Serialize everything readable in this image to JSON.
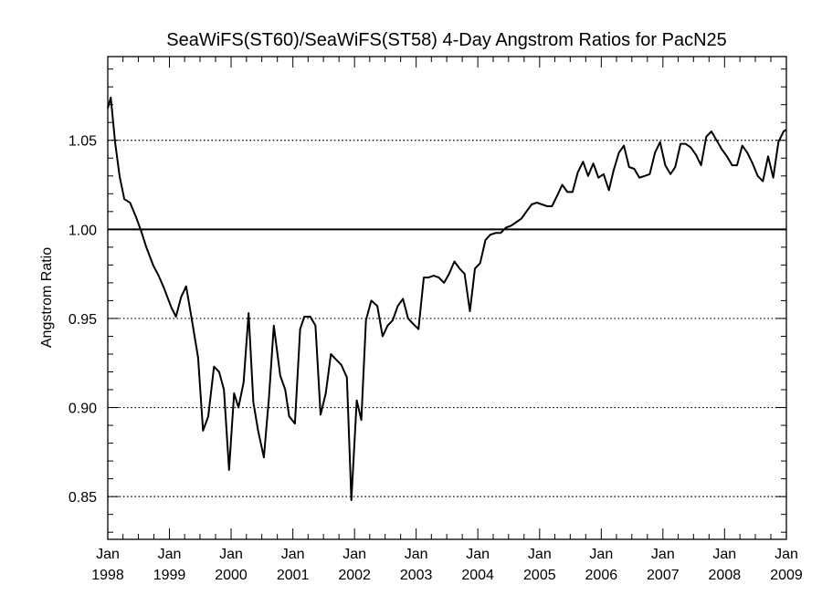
{
  "chart_data": {
    "type": "line",
    "title": "SeaWiFS(ST60)/SeaWiFS(ST58) 4-Day Angstrom Ratios for PacN25",
    "xlabel": "",
    "ylabel": "Angstrom Ratio",
    "xlim": [
      "1998-01-01",
      "2009-01-01"
    ],
    "ylim": [
      0.826,
      1.097
    ],
    "y_ticks": [
      "0.85",
      "0.90",
      "0.95",
      "1.00",
      "1.05"
    ],
    "x_ticks": [
      {
        "month": "Jan",
        "year": "1998",
        "date": "1998-01-01"
      },
      {
        "month": "Jan",
        "year": "1999",
        "date": "1999-01-01"
      },
      {
        "month": "Jan",
        "year": "2000",
        "date": "2000-01-01"
      },
      {
        "month": "Jan",
        "year": "2001",
        "date": "2001-01-01"
      },
      {
        "month": "Jan",
        "year": "2002",
        "date": "2002-01-01"
      },
      {
        "month": "Jan",
        "year": "2003",
        "date": "2003-01-01"
      },
      {
        "month": "Jan",
        "year": "2004",
        "date": "2004-01-01"
      },
      {
        "month": "Jan",
        "year": "2005",
        "date": "2005-01-01"
      },
      {
        "month": "Jan",
        "year": "2006",
        "date": "2006-01-01"
      },
      {
        "month": "Jan",
        "year": "2007",
        "date": "2007-01-01"
      },
      {
        "month": "Jan",
        "year": "2008",
        "date": "2008-01-01"
      },
      {
        "month": "Jan",
        "year": "2009",
        "date": "2009-01-01"
      }
    ],
    "grid": "horizontal dotted at labeled y ticks",
    "reference_line": 1.0,
    "series": [
      {
        "color": "#000000",
        "x": [
          "1998-01-01",
          "1998-01-19",
          "1998-02-13",
          "1998-03-12",
          "1998-04-09",
          "1998-05-13",
          "1998-06-17",
          "1998-07-18",
          "1998-08-17",
          "1998-09-26",
          "1998-10-29",
          "1998-11-30",
          "1999-01-13",
          "1999-02-09",
          "1999-03-11",
          "1999-04-10",
          "1999-05-11",
          "1999-06-20",
          "1999-07-19",
          "1999-08-19",
          "1999-09-22",
          "1999-10-22",
          "1999-11-20",
          "1999-12-20",
          "2000-01-19",
          "2000-02-14",
          "2000-03-15",
          "2000-04-14",
          "2000-05-12",
          "2000-06-09",
          "2000-07-13",
          "2000-08-12",
          "2000-09-10",
          "2000-10-18",
          "2000-11-17",
          "2000-12-10",
          "2001-01-13",
          "2001-02-13",
          "2001-03-10",
          "2001-04-14",
          "2001-05-15",
          "2001-06-14",
          "2001-07-15",
          "2001-08-14",
          "2001-09-13",
          "2001-10-14",
          "2001-11-17",
          "2001-12-13",
          "2002-01-14",
          "2002-02-10",
          "2002-03-10",
          "2002-04-10",
          "2002-05-16",
          "2002-06-16",
          "2002-07-16",
          "2002-08-15",
          "2002-09-14",
          "2002-10-15",
          "2002-11-14",
          "2002-12-14",
          "2003-01-15",
          "2003-02-15",
          "2003-03-15",
          "2003-04-15",
          "2003-05-15",
          "2003-06-15",
          "2003-07-15",
          "2003-08-15",
          "2003-09-15",
          "2003-10-15",
          "2003-11-15",
          "2003-12-15",
          "2004-01-15",
          "2004-02-15",
          "2004-03-15",
          "2004-04-15",
          "2004-05-15",
          "2004-06-15",
          "2004-07-15",
          "2004-08-15",
          "2004-09-15",
          "2004-10-15",
          "2004-11-15",
          "2004-12-15",
          "2005-01-15",
          "2005-02-15",
          "2005-03-15",
          "2005-04-15",
          "2005-05-15",
          "2005-06-15",
          "2005-07-15",
          "2005-08-15",
          "2005-09-15",
          "2005-10-15",
          "2005-11-15",
          "2005-12-15",
          "2006-01-15",
          "2006-02-15",
          "2006-03-15",
          "2006-04-15",
          "2006-05-15",
          "2006-06-15",
          "2006-07-15",
          "2006-08-15",
          "2006-09-15",
          "2006-10-15",
          "2006-11-15",
          "2006-12-15",
          "2007-01-15",
          "2007-02-15",
          "2007-03-15",
          "2007-04-15",
          "2007-05-15",
          "2007-06-15",
          "2007-07-15",
          "2007-08-15",
          "2007-09-15",
          "2007-10-15",
          "2007-11-15",
          "2007-12-15",
          "2008-01-15",
          "2008-02-15",
          "2008-03-15",
          "2008-04-15",
          "2008-05-15",
          "2008-06-15",
          "2008-07-15",
          "2008-08-15",
          "2008-09-15",
          "2008-10-15",
          "2008-11-15",
          "2008-12-15",
          "2009-01-01"
        ],
        "y": [
          1.068,
          1.074,
          1.049,
          1.03,
          1.017,
          1.015,
          1.007,
          0.999,
          0.99,
          0.98,
          0.974,
          0.967,
          0.956,
          0.951,
          0.962,
          0.968,
          0.951,
          0.928,
          0.887,
          0.895,
          0.923,
          0.92,
          0.91,
          0.865,
          0.908,
          0.9,
          0.914,
          0.953,
          0.903,
          0.887,
          0.872,
          0.905,
          0.946,
          0.918,
          0.91,
          0.895,
          0.891,
          0.944,
          0.951,
          0.951,
          0.946,
          0.896,
          0.908,
          0.93,
          0.927,
          0.924,
          0.917,
          0.848,
          0.904,
          0.893,
          0.949,
          0.96,
          0.957,
          0.94,
          0.946,
          0.949,
          0.957,
          0.961,
          0.95,
          0.947,
          0.944,
          0.973,
          0.973,
          0.974,
          0.973,
          0.97,
          0.975,
          0.982,
          0.978,
          0.975,
          0.954,
          0.978,
          0.981,
          0.994,
          0.997,
          0.998,
          0.998,
          1.001,
          1.002,
          1.004,
          1.006,
          1.01,
          1.014,
          1.015,
          1.014,
          1.013,
          1.013,
          1.019,
          1.025,
          1.021,
          1.021,
          1.032,
          1.038,
          1.03,
          1.037,
          1.029,
          1.031,
          1.022,
          1.033,
          1.043,
          1.047,
          1.035,
          1.034,
          1.029,
          1.03,
          1.031,
          1.043,
          1.049,
          1.036,
          1.031,
          1.035,
          1.048,
          1.048,
          1.046,
          1.042,
          1.036,
          1.052,
          1.055,
          1.05,
          1.045,
          1.041,
          1.036,
          1.036,
          1.047,
          1.043,
          1.037,
          1.03,
          1.027,
          1.041,
          1.029,
          1.049,
          1.055,
          1.056
        ]
      }
    ]
  }
}
